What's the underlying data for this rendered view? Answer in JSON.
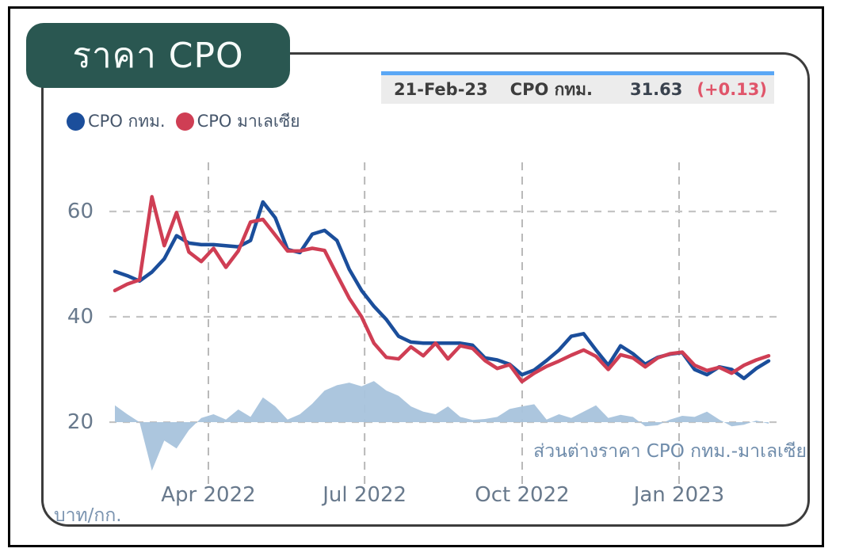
{
  "badge": {
    "title": "ราคา CPO"
  },
  "quote_bar": {
    "date": "21-Feb-23",
    "series_name": "CPO กทม.",
    "value": "31.63",
    "change": "(+0.13)"
  },
  "legend": {
    "items": [
      {
        "label": "CPO กทม.",
        "color": "#1b4e9b"
      },
      {
        "label": "CPO มาเลเซีย",
        "color": "#cf3e54"
      }
    ]
  },
  "axis": {
    "unit_label": "บาท/กก."
  },
  "annotation_label": "ส่วนต่างราคา CPO กทม.-มาเลเซีย",
  "colors": {
    "badge_bg": "#2a5751",
    "badge_text": "#f6fbf9",
    "outer_frame": "#000000",
    "panel_border": "#3c3c3c",
    "quote_bg": "#ececec",
    "quote_accent": "#5aa7f5",
    "quote_change": "#e0556a",
    "bangkok_blue": "#1b4e9b",
    "malaysia_red": "#cf3e54",
    "diff_area": "#a8c3dc",
    "grid_h": "#c4c4c4",
    "grid_v": "#b8b8b8",
    "axis_text": "#68798c",
    "muted_blue_text": "#6f8cab"
  },
  "chart_data": {
    "type": "line",
    "title": "ราคา CPO",
    "ylabel": "บาท/กก.",
    "x_unit": "weekly",
    "x_range": [
      "Feb 2022",
      "Feb 2023"
    ],
    "x_tick_labels": [
      "Apr 2022",
      "Jul 2022",
      "Oct 2022",
      "Jan 2023"
    ],
    "x_tick_positions": [
      0.143,
      0.382,
      0.623,
      0.863
    ],
    "y_ticks": [
      20,
      40,
      60
    ],
    "ylim": [
      8,
      69
    ],
    "grid": "dashed",
    "legend_position": "top-left",
    "series": [
      {
        "name": "CPO กทม.",
        "type": "line",
        "color": "#1b4e9b",
        "values": [
          48.6,
          47.8,
          46.8,
          48.5,
          51.0,
          55.4,
          54.0,
          53.7,
          53.7,
          53.5,
          53.3,
          54.5,
          61.8,
          58.8,
          52.8,
          52.2,
          55.7,
          56.4,
          54.5,
          49.0,
          45.0,
          42.0,
          39.5,
          36.3,
          35.2,
          35.0,
          35.0,
          35.0,
          35.0,
          34.6,
          32.2,
          31.8,
          31.0,
          29.0,
          29.9,
          31.7,
          33.7,
          36.3,
          36.8,
          33.7,
          30.8,
          34.5,
          33.0,
          31.0,
          32.3,
          32.9,
          33.2,
          30.0,
          29.0,
          30.5,
          30.0,
          28.3,
          30.2,
          31.63
        ]
      },
      {
        "name": "CPO มาเลเซีย",
        "type": "line",
        "color": "#cf3e54",
        "values": [
          45.0,
          46.2,
          47.0,
          62.8,
          53.5,
          59.8,
          52.3,
          50.5,
          53.0,
          49.4,
          52.5,
          58.0,
          58.5,
          55.5,
          52.5,
          52.5,
          53.0,
          52.6,
          48.0,
          43.5,
          40.0,
          35.0,
          32.3,
          32.0,
          34.3,
          32.6,
          35.0,
          32.0,
          34.5,
          34.0,
          31.7,
          30.2,
          30.9,
          27.7,
          29.3,
          30.6,
          31.6,
          32.7,
          33.7,
          32.5,
          30.0,
          32.8,
          32.2,
          30.5,
          32.2,
          33.0,
          33.3,
          30.8,
          29.8,
          30.4,
          29.3,
          30.8,
          31.8,
          32.6
        ]
      },
      {
        "name": "ส่วนต่างราคา CPO กทม.-มาเลเซีย",
        "type": "area",
        "color": "#a8c3dc",
        "baseline": 20,
        "values": [
          23.2,
          21.5,
          20.0,
          10.8,
          16.5,
          15.0,
          18.5,
          20.8,
          21.5,
          20.5,
          22.4,
          21.0,
          24.7,
          23.0,
          20.5,
          21.5,
          23.5,
          26.0,
          27.0,
          27.5,
          26.8,
          27.8,
          26.0,
          25.0,
          23.0,
          22.0,
          21.5,
          23.0,
          21.0,
          20.4,
          20.6,
          21.0,
          22.5,
          23.0,
          23.4,
          20.5,
          21.5,
          20.8,
          22.0,
          23.2,
          20.8,
          21.4,
          21.0,
          19.2,
          19.4,
          20.5,
          21.2,
          21.0,
          22.0,
          20.5,
          19.2,
          19.5,
          20.3,
          19.7
        ]
      }
    ]
  }
}
